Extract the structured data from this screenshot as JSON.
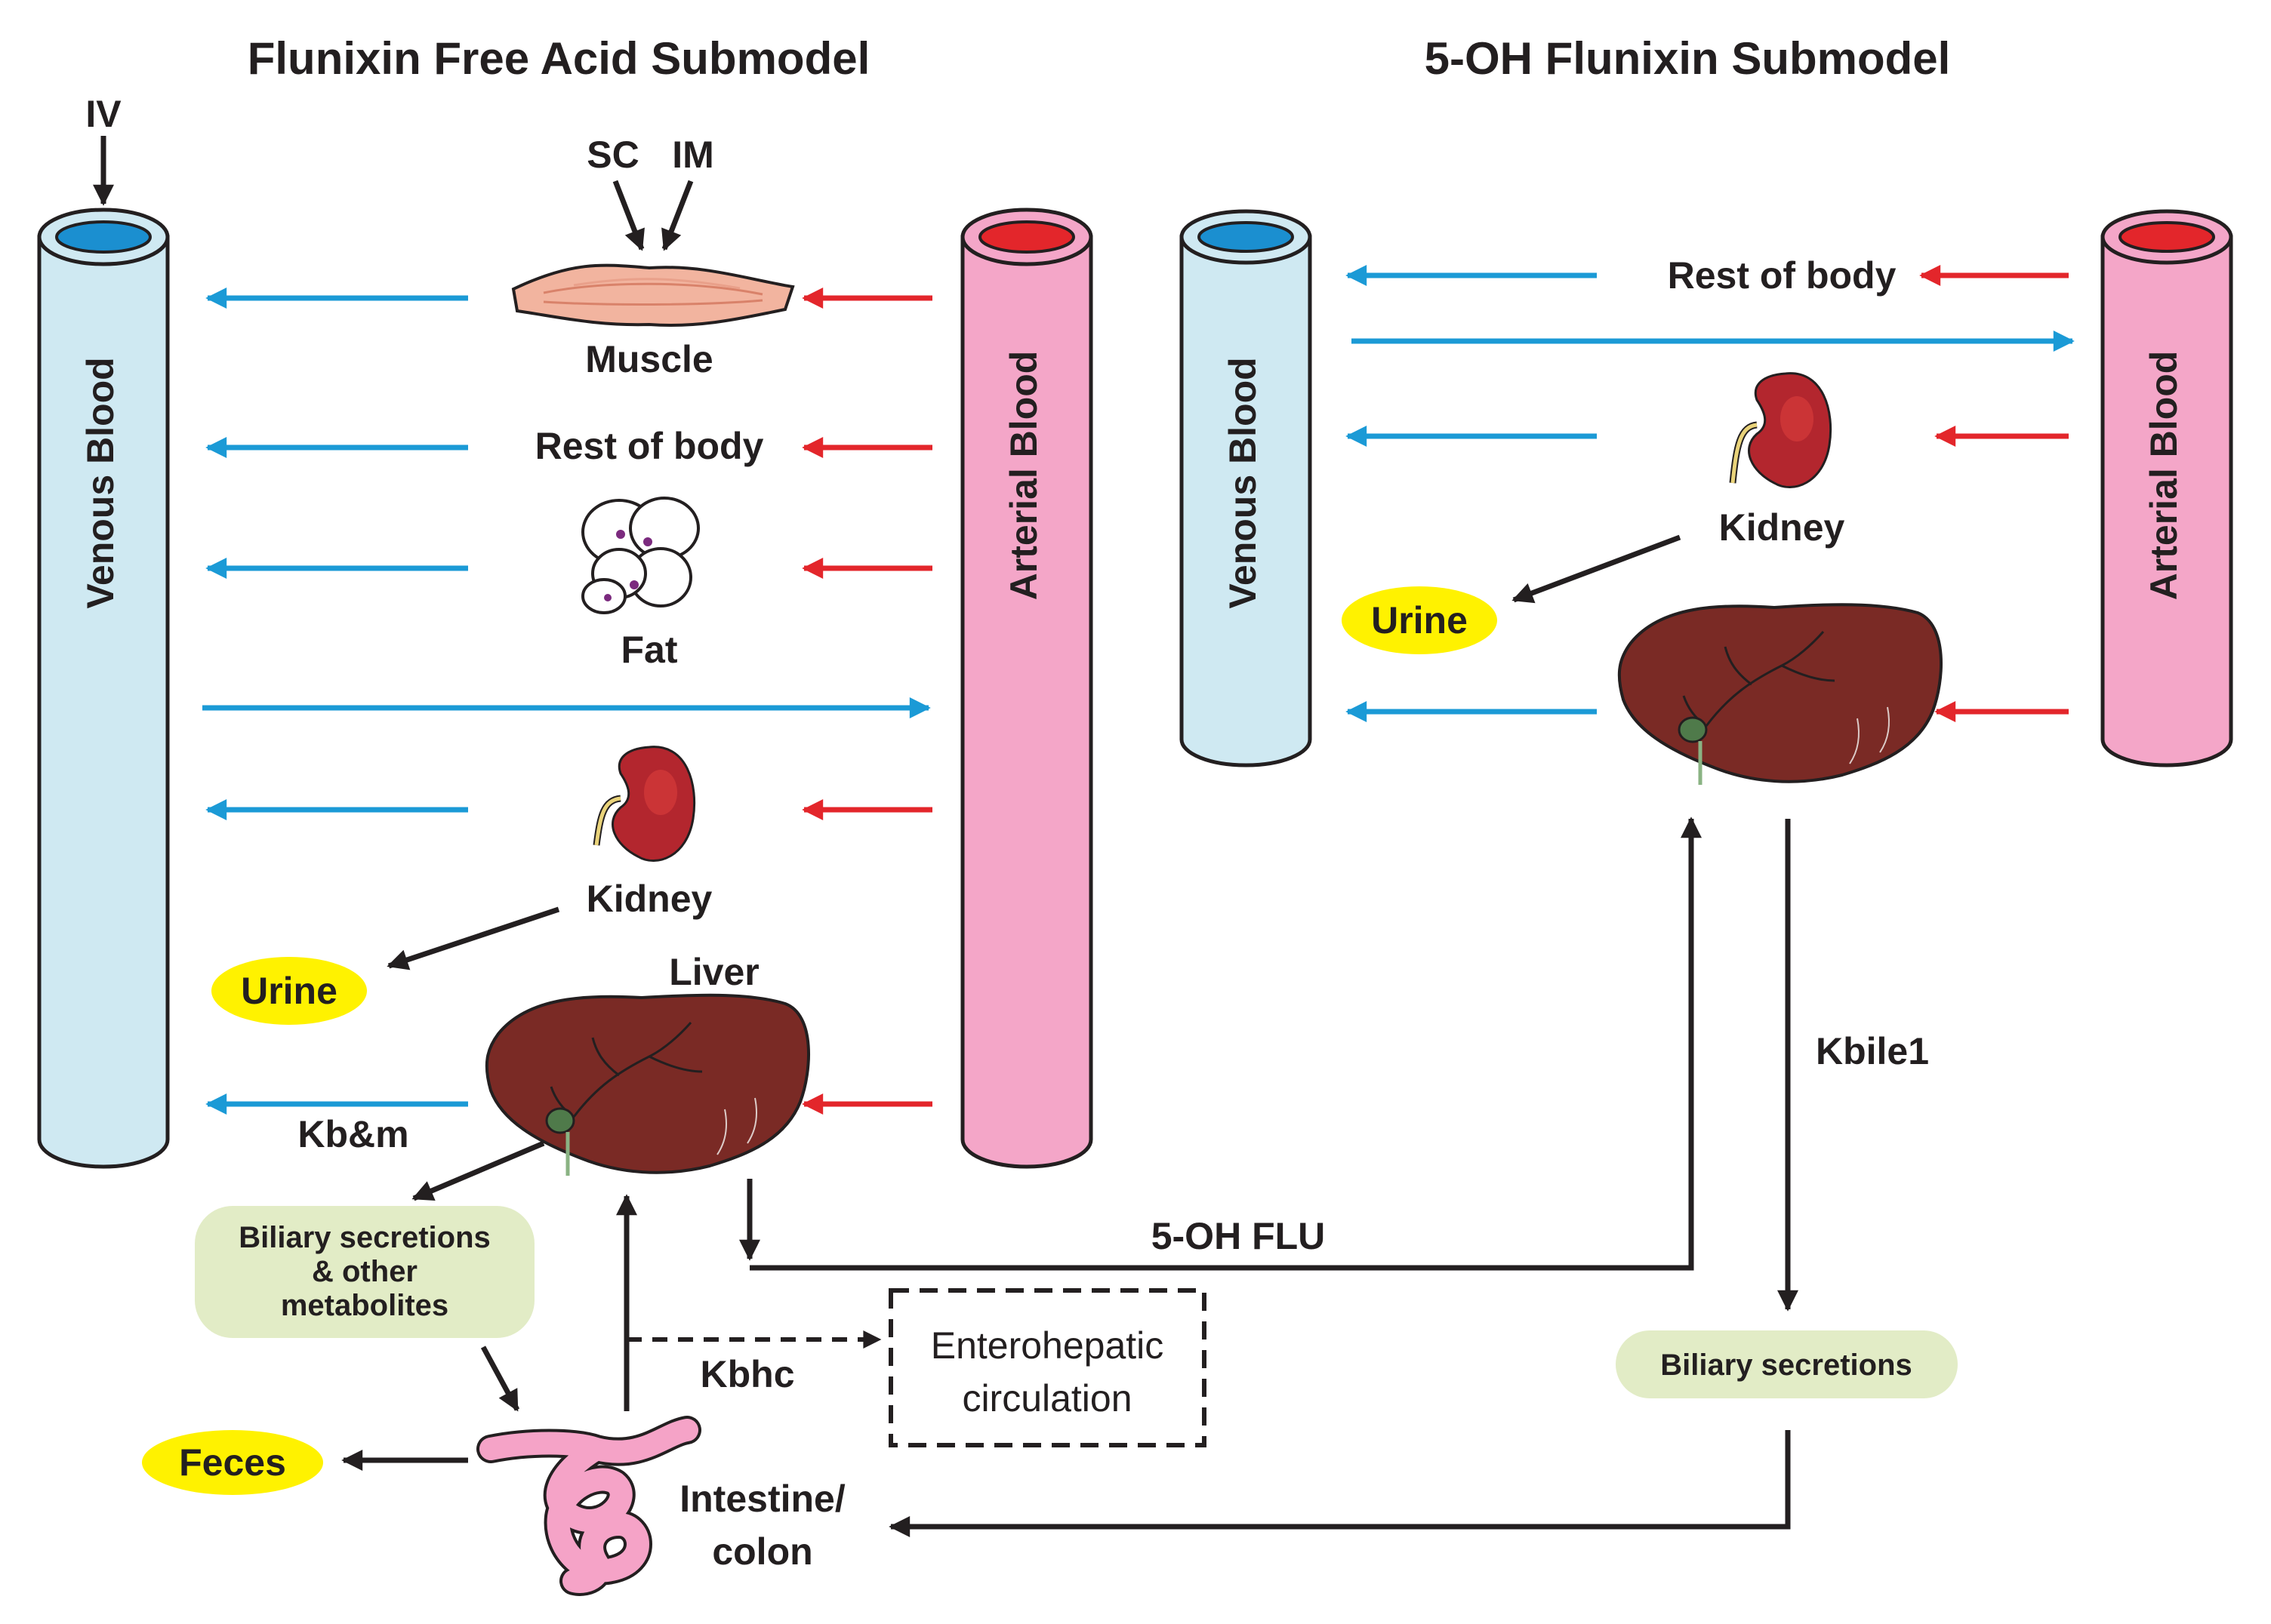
{
  "titles": {
    "left": "Flunixin Free Acid Submodel",
    "right": "5-OH Flunixin Submodel"
  },
  "left": {
    "iv": "IV",
    "sc": "SC",
    "im": "IM",
    "venous": "Venous Blood",
    "arterial": "Arterial Blood",
    "muscle": "Muscle",
    "rest_of_body": "Rest of body",
    "fat": "Fat",
    "kidney": "Kidney",
    "urine": "Urine",
    "liver": "Liver",
    "kbm": "Kb&m",
    "biliary_line1": "Biliary secretions",
    "biliary_line2": "& other",
    "biliary_line3": "metabolites",
    "feces": "Feces",
    "kbhc": "Kbhc",
    "entero_line1": "Enterohepatic",
    "entero_line2": "circulation",
    "intestine_line1": "Intestine/",
    "intestine_line2": "colon"
  },
  "right": {
    "venous": "Venous Blood",
    "arterial": "Arterial Blood",
    "rest_of_body": "Rest of body",
    "kidney": "Kidney",
    "urine": "Urine",
    "kbile1": "Kbile1",
    "biliary": "Biliary secretions"
  },
  "link": {
    "five_oh_flu": "5-OH FLU"
  },
  "colors": {
    "venous_fill": "#cfe9f2",
    "venous_cap": "#1b8fd0",
    "arterial_fill": "#f4a6c8",
    "arterial_cap": "#e3262b",
    "blue_arrow": "#1b9ad6",
    "red_arrow": "#e3262b",
    "black_arrow": "#231f20",
    "urine_fill": "#fff200",
    "biliary_fill": "#e2ecc6",
    "liver_fill": "#7a2a25",
    "kidney_fill": "#b3262e",
    "intestine_fill": "#f5a3c7"
  }
}
